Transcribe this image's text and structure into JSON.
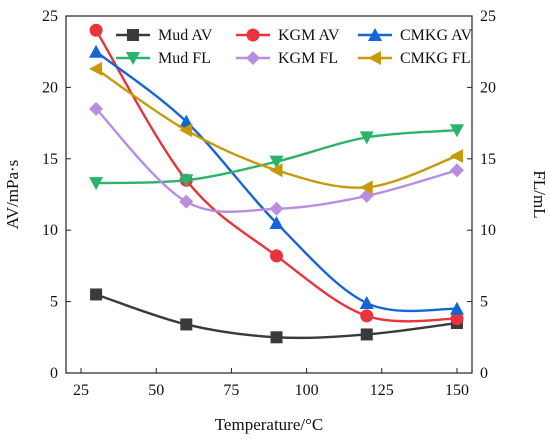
{
  "chart_data": {
    "type": "line",
    "title": "",
    "xlabel": "Temperature/°C",
    "ylabel": "AV/mPa·s",
    "y2label": "FL/mL",
    "xlim": [
      20,
      155
    ],
    "ylim": [
      0,
      25
    ],
    "y2lim": [
      0,
      25
    ],
    "xticks": [
      25,
      50,
      75,
      100,
      125,
      150
    ],
    "yticks": [
      0,
      5,
      10,
      15,
      20,
      25
    ],
    "y2ticks": [
      0,
      5,
      10,
      15,
      20,
      25
    ],
    "x": [
      30,
      60,
      90,
      120,
      150
    ],
    "legend_position": "top-right",
    "grid": false,
    "series": [
      {
        "name": "Mud AV",
        "axis": "left",
        "color": "#3a3a3a",
        "marker": "square",
        "values": [
          5.5,
          3.4,
          2.5,
          2.7,
          3.5
        ]
      },
      {
        "name": "KGM AV",
        "axis": "left",
        "color": "#e8343a",
        "marker": "circle",
        "values": [
          24.0,
          13.5,
          8.2,
          4.0,
          3.8
        ]
      },
      {
        "name": "CMKG AV",
        "axis": "left",
        "color": "#1565d8",
        "marker": "triangle-up",
        "values": [
          22.5,
          17.6,
          10.5,
          4.9,
          4.5
        ]
      },
      {
        "name": "Mud FL",
        "axis": "right",
        "color": "#2ab36b",
        "marker": "triangle-down",
        "values": [
          13.3,
          13.5,
          14.8,
          16.5,
          17.0
        ]
      },
      {
        "name": "KGM FL",
        "axis": "right",
        "color": "#b98de0",
        "marker": "diamond",
        "values": [
          18.5,
          12.0,
          11.5,
          12.4,
          14.2
        ]
      },
      {
        "name": "CMKG FL",
        "axis": "right",
        "color": "#c89a0a",
        "marker": "triangle-left",
        "values": [
          21.3,
          17.0,
          14.2,
          13.0,
          15.2
        ]
      }
    ]
  }
}
